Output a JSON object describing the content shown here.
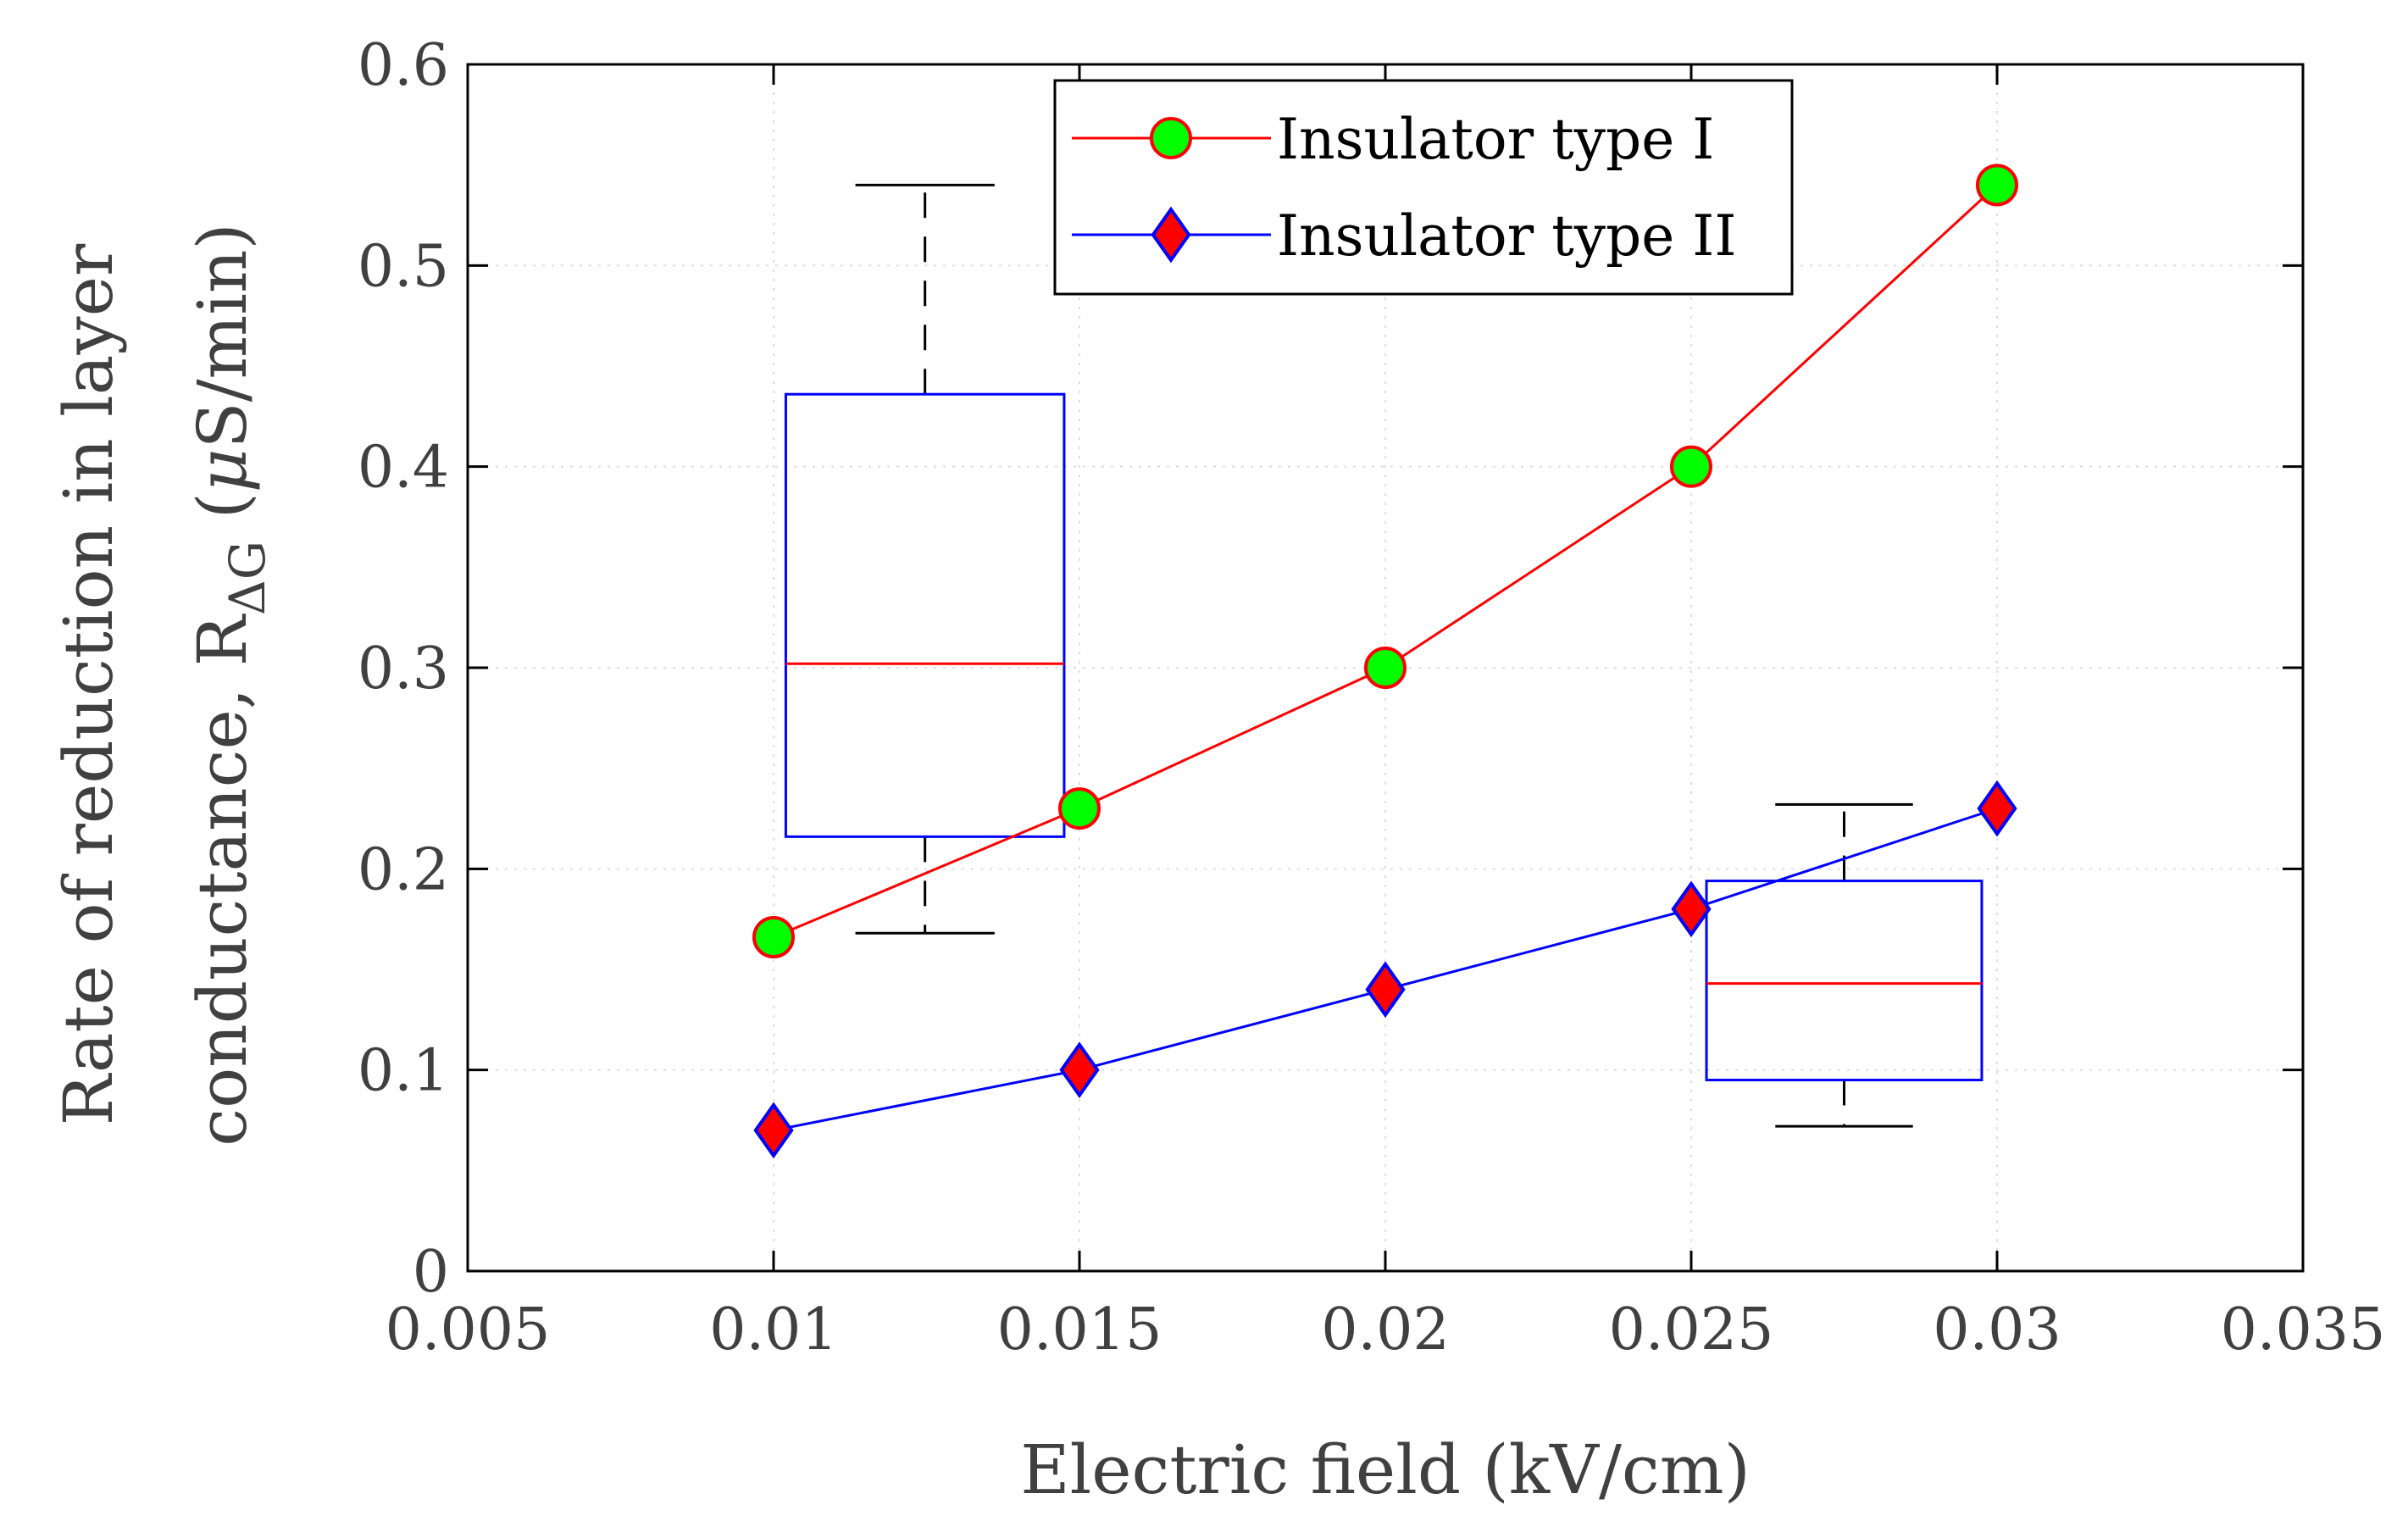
{
  "chart_data": {
    "type": "line",
    "title": "",
    "xlabel": "Electric field (kV/cm)",
    "ylabel": {
      "line1": "Rate of reduction in layer",
      "line2_prefix": "conductance, R",
      "line2_subscript": "ΔG",
      "line2_open": " (",
      "line2_mu": "μ",
      "line2_unit": "S/min)"
    },
    "xlim": [
      0.005,
      0.035
    ],
    "ylim": [
      0,
      0.6
    ],
    "x_ticks": [
      0.005,
      0.01,
      0.015,
      0.02,
      0.025,
      0.03,
      0.035
    ],
    "x_tick_labels": [
      "0.005",
      "0.01",
      "0.015",
      "0.02",
      "0.025",
      "0.03",
      "0.035"
    ],
    "y_ticks": [
      0,
      0.1,
      0.2,
      0.3,
      0.4,
      0.5,
      0.6
    ],
    "y_tick_labels": [
      "0",
      "0.1",
      "0.2",
      "0.3",
      "0.4",
      "0.5",
      "0.6"
    ],
    "grid": true,
    "legend_position": "top-center",
    "series": [
      {
        "name": "Insulator type I",
        "line_color": "#ff0000",
        "marker": "circle",
        "marker_fill": "#00ff00",
        "marker_edge": "#ff0000",
        "x": [
          0.01,
          0.015,
          0.02,
          0.025,
          0.03
        ],
        "y": [
          0.166,
          0.23,
          0.3,
          0.4,
          0.54
        ]
      },
      {
        "name": "Insulator type II",
        "line_color": "#0000ff",
        "marker": "diamond",
        "marker_fill": "#ff0000",
        "marker_edge": "#0000ff",
        "x": [
          0.01,
          0.015,
          0.02,
          0.025,
          0.03
        ],
        "y": [
          0.07,
          0.1,
          0.14,
          0.18,
          0.23
        ]
      }
    ],
    "boxplots": [
      {
        "name": "Insulator type I",
        "x_left": 0.0102,
        "x_right": 0.01475,
        "whisker_low": 0.168,
        "q1": 0.216,
        "median": 0.302,
        "q3": 0.436,
        "whisker_high": 0.54
      },
      {
        "name": "Insulator type II",
        "x_left": 0.02525,
        "x_right": 0.02975,
        "whisker_low": 0.072,
        "q1": 0.095,
        "median": 0.143,
        "q3": 0.194,
        "whisker_high": 0.232
      }
    ],
    "colors": {
      "axis": "#000000",
      "tick_text": "#404040",
      "grid": "#dddddd",
      "box_edge": "#0000ff",
      "median": "#ff0000",
      "whisker": "#000000"
    }
  }
}
